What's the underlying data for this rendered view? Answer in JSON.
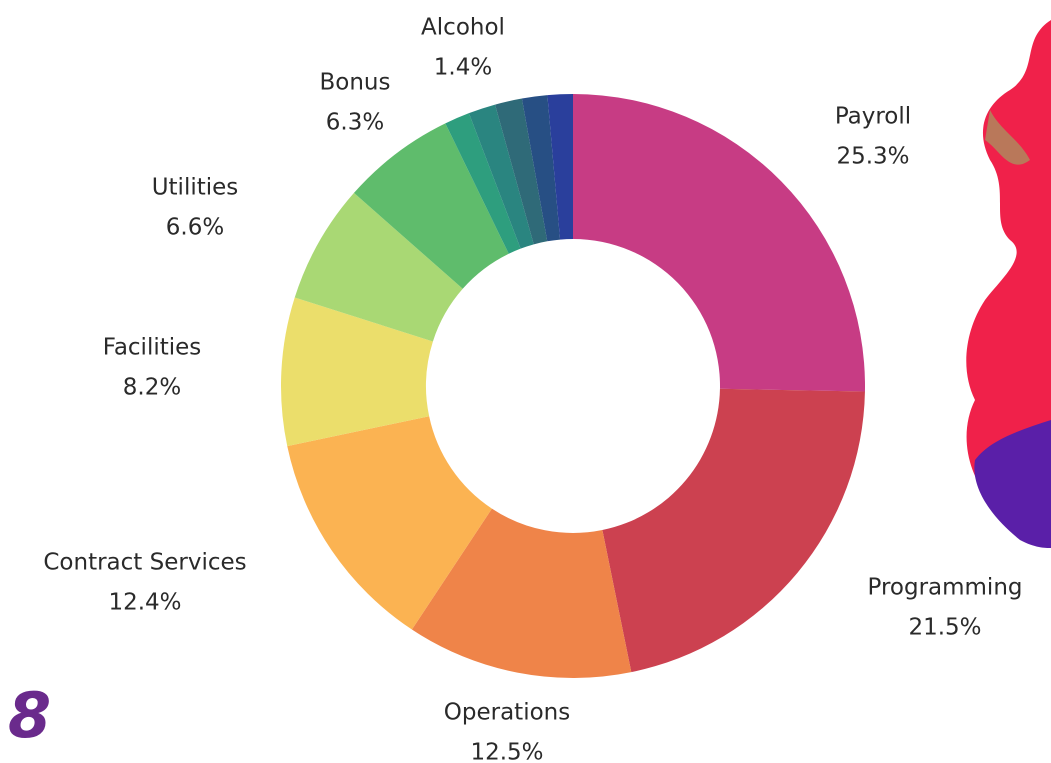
{
  "chart_data": {
    "type": "donut",
    "categories": [
      "Payroll",
      "Programming",
      "Operations",
      "Contract Services",
      "Facilities",
      "Utilities",
      "Bonus",
      "Alcohol",
      null,
      null,
      null,
      null
    ],
    "values": [
      25.3,
      21.5,
      12.5,
      12.4,
      8.2,
      6.6,
      6.3,
      1.4,
      1.5,
      1.5,
      1.4,
      1.4
    ],
    "value_labels": [
      "25.3%",
      "21.5%",
      "12.5%",
      "12.4%",
      "8.2%",
      "6.6%",
      "6.3%",
      "1.4%",
      null,
      null,
      null,
      null
    ],
    "colors": [
      "#c73c84",
      "#cc4150",
      "#ef8449",
      "#fbb352",
      "#ebde6b",
      "#a9d874",
      "#5fbc6c",
      "#2e9e7e",
      "#2a8580",
      "#2f6a78",
      "#274f84",
      "#2a3f9c"
    ]
  },
  "page_number": "8"
}
